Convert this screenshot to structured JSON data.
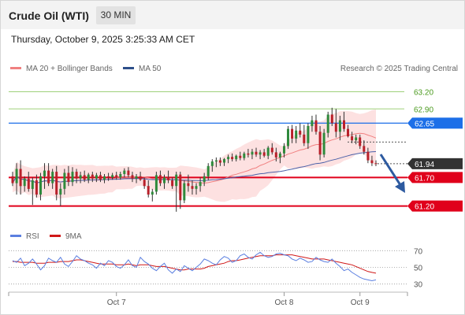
{
  "header": {
    "instrument": "Crude Oil (WTI)",
    "timeframe": "30 MIN"
  },
  "timestamp": "Thursday, October 9, 2025 3:25:33 AM CET",
  "legend": {
    "ma_bollinger": "MA 20 + Bollinger Bands",
    "ma50": "MA 50",
    "rsi": "RSI",
    "nine_ma": "9MA"
  },
  "credit": "Research © 2025 Trading Central",
  "colors": {
    "up": "#2f8a3c",
    "down": "#b8202a",
    "resistance": "#e0001b",
    "pivot": "#1c6fe8",
    "target_line": "#9fd07a",
    "band_fill": "#fde1e1",
    "ma20": "#f08080",
    "ma50": "#4a60a8",
    "rsi": "#5b7fe0",
    "nine_ma": "#d01818",
    "arrow": "#2d5aa0",
    "last_price_tag": "#333333"
  },
  "chart_data": [
    {
      "type": "candlestick",
      "title": "Crude Oil (WTI)",
      "timeframe": "30 MIN",
      "x_ticks": [
        "Oct 7",
        "Oct 8",
        "Oct 9"
      ],
      "ylim": [
        60.85,
        63.4
      ],
      "levels": [
        {
          "value": 63.2,
          "label": "63.20",
          "role": "target",
          "style": "green-line"
        },
        {
          "value": 62.9,
          "label": "62.90",
          "role": "target",
          "style": "green-line"
        },
        {
          "value": 62.65,
          "label": "62.65",
          "role": "pivot",
          "style": "blue-tag"
        },
        {
          "value": 61.94,
          "label": "61.94",
          "role": "last",
          "style": "dark-tag"
        },
        {
          "value": 61.7,
          "label": "61.70",
          "role": "support",
          "style": "red-tag"
        },
        {
          "value": 61.2,
          "label": "61.20",
          "role": "support",
          "style": "red-tag"
        }
      ],
      "series": [
        {
          "name": "MA 20 + Bollinger Bands",
          "type": "line"
        },
        {
          "name": "MA 50",
          "type": "line"
        }
      ],
      "candles": [
        [
          61.72,
          61.8,
          61.55,
          61.6
        ],
        [
          61.6,
          61.95,
          61.4,
          61.85
        ],
        [
          61.85,
          62.0,
          61.4,
          61.55
        ],
        [
          61.55,
          61.72,
          61.45,
          61.68
        ],
        [
          61.68,
          61.8,
          61.45,
          61.5
        ],
        [
          61.5,
          61.7,
          61.22,
          61.65
        ],
        [
          61.65,
          61.75,
          61.35,
          61.4
        ],
        [
          61.4,
          61.78,
          61.3,
          61.72
        ],
        [
          61.72,
          61.95,
          61.5,
          61.82
        ],
        [
          61.82,
          61.95,
          61.55,
          61.6
        ],
        [
          61.6,
          61.85,
          61.5,
          61.8
        ],
        [
          61.8,
          61.9,
          61.3,
          61.4
        ],
        [
          61.4,
          61.6,
          61.2,
          61.5
        ],
        [
          61.5,
          61.85,
          61.4,
          61.78
        ],
        [
          61.78,
          61.9,
          61.55,
          61.62
        ],
        [
          61.62,
          61.88,
          61.55,
          61.8
        ],
        [
          61.8,
          61.85,
          61.6,
          61.68
        ],
        [
          61.68,
          61.8,
          61.6,
          61.74
        ],
        [
          61.74,
          61.82,
          61.62,
          61.66
        ],
        [
          61.66,
          61.78,
          61.6,
          61.75
        ],
        [
          61.75,
          61.8,
          61.62,
          61.68
        ],
        [
          61.68,
          61.78,
          61.62,
          61.74
        ],
        [
          61.74,
          61.8,
          61.62,
          61.66
        ],
        [
          61.66,
          61.76,
          61.6,
          61.72
        ],
        [
          61.72,
          61.78,
          61.64,
          61.7
        ],
        [
          61.7,
          61.78,
          61.66,
          61.74
        ],
        [
          61.74,
          61.8,
          61.66,
          61.7
        ],
        [
          61.7,
          61.8,
          61.66,
          61.76
        ],
        [
          61.76,
          61.86,
          61.7,
          61.82
        ],
        [
          61.82,
          61.88,
          61.7,
          61.74
        ],
        [
          61.74,
          61.8,
          61.62,
          61.68
        ],
        [
          61.68,
          61.76,
          61.6,
          61.72
        ],
        [
          61.72,
          61.8,
          61.64,
          61.66
        ],
        [
          61.66,
          61.7,
          61.5,
          61.55
        ],
        [
          61.55,
          61.65,
          61.35,
          61.4
        ],
        [
          61.4,
          61.5,
          61.28,
          61.45
        ],
        [
          61.45,
          61.8,
          61.4,
          61.74
        ],
        [
          61.74,
          61.82,
          61.55,
          61.6
        ],
        [
          61.6,
          61.75,
          61.5,
          61.7
        ],
        [
          61.7,
          61.82,
          61.6,
          61.65
        ],
        [
          61.65,
          61.7,
          61.5,
          61.55
        ],
        [
          61.55,
          61.8,
          61.1,
          61.75
        ],
        [
          61.75,
          61.8,
          61.15,
          61.3
        ],
        [
          61.3,
          61.65,
          61.25,
          61.6
        ],
        [
          61.6,
          61.75,
          61.45,
          61.55
        ],
        [
          61.55,
          61.65,
          61.4,
          61.5
        ],
        [
          61.5,
          61.6,
          61.4,
          61.55
        ],
        [
          61.55,
          61.7,
          61.45,
          61.62
        ],
        [
          61.62,
          61.78,
          61.55,
          61.72
        ],
        [
          61.72,
          61.95,
          61.65,
          61.9
        ],
        [
          61.9,
          62.02,
          61.8,
          61.98
        ],
        [
          61.98,
          62.05,
          61.88,
          62.0
        ],
        [
          62.0,
          62.05,
          61.9,
          61.96
        ],
        [
          61.96,
          62.04,
          61.9,
          62.02
        ],
        [
          62.02,
          62.1,
          61.95,
          62.06
        ],
        [
          62.06,
          62.12,
          61.98,
          62.02
        ],
        [
          62.02,
          62.1,
          61.98,
          62.08
        ],
        [
          62.08,
          62.15,
          62.0,
          62.04
        ],
        [
          62.04,
          62.15,
          62.0,
          62.12
        ],
        [
          62.12,
          62.2,
          62.05,
          62.1
        ],
        [
          62.1,
          62.2,
          62.02,
          62.15
        ],
        [
          62.15,
          62.22,
          62.06,
          62.1
        ],
        [
          62.1,
          62.18,
          62.02,
          62.14
        ],
        [
          62.14,
          62.2,
          62.05,
          62.08
        ],
        [
          62.08,
          62.25,
          62.02,
          62.22
        ],
        [
          62.22,
          62.3,
          62.1,
          62.14
        ],
        [
          62.14,
          62.22,
          61.98,
          62.05
        ],
        [
          62.05,
          62.15,
          61.95,
          62.12
        ],
        [
          62.12,
          62.3,
          62.05,
          62.25
        ],
        [
          62.25,
          62.6,
          62.2,
          62.55
        ],
        [
          62.55,
          62.62,
          62.3,
          62.38
        ],
        [
          62.38,
          62.6,
          62.3,
          62.52
        ],
        [
          62.52,
          62.65,
          62.4,
          62.45
        ],
        [
          62.45,
          62.62,
          62.25,
          62.3
        ],
        [
          62.3,
          62.65,
          62.2,
          62.6
        ],
        [
          62.6,
          62.78,
          62.5,
          62.7
        ],
        [
          62.7,
          62.8,
          62.45,
          62.5
        ],
        [
          62.5,
          62.6,
          62.0,
          62.1
        ],
        [
          62.1,
          62.55,
          62.05,
          62.48
        ],
        [
          62.48,
          62.85,
          62.4,
          62.8
        ],
        [
          62.8,
          62.92,
          62.6,
          62.65
        ],
        [
          62.65,
          62.9,
          62.4,
          62.5
        ],
        [
          62.5,
          62.78,
          62.35,
          62.7
        ],
        [
          62.7,
          62.85,
          62.5,
          62.55
        ],
        [
          62.55,
          62.62,
          62.4,
          62.42
        ],
        [
          62.42,
          62.5,
          62.3,
          62.35
        ],
        [
          62.35,
          62.45,
          62.28,
          62.4
        ],
        [
          62.4,
          62.45,
          62.2,
          62.25
        ],
        [
          62.25,
          62.35,
          62.1,
          62.15
        ],
        [
          62.15,
          62.22,
          61.95,
          62.0
        ],
        [
          62.0,
          62.08,
          61.9,
          61.95
        ],
        [
          61.95,
          62.0,
          61.9,
          61.94
        ]
      ]
    },
    {
      "type": "line",
      "title": "RSI",
      "series": [
        {
          "name": "RSI"
        },
        {
          "name": "9MA"
        }
      ],
      "ylim": [
        25,
        75
      ],
      "y_ticks": [
        70,
        50,
        30
      ],
      "rsi": [
        58,
        56,
        61,
        52,
        55,
        60,
        54,
        47,
        52,
        61,
        58,
        56,
        62,
        54,
        51,
        57,
        64,
        60,
        58,
        55,
        53,
        49,
        55,
        52,
        58,
        56,
        51,
        49,
        53,
        59,
        52,
        50,
        62,
        57,
        54,
        49,
        46,
        51,
        55,
        47,
        43,
        48,
        45,
        52,
        49,
        46,
        50,
        54,
        60,
        58,
        55,
        53,
        59,
        63,
        61,
        56,
        58,
        64,
        66,
        62,
        60,
        65,
        68,
        64,
        62,
        63,
        66,
        67,
        65,
        64,
        60,
        58,
        61,
        59,
        56,
        57,
        62,
        59,
        57,
        56,
        60,
        55,
        51,
        46,
        48,
        44,
        41,
        38,
        36,
        35,
        34,
        35
      ],
      "nine_ma": [
        57,
        57,
        56,
        56,
        56,
        56,
        55,
        55,
        55,
        56,
        56,
        56,
        57,
        57,
        57,
        58,
        59,
        59,
        58,
        57,
        56,
        55,
        54,
        54,
        54,
        54,
        53,
        53,
        53,
        54,
        53,
        52,
        53,
        53,
        53,
        52,
        51,
        51,
        51,
        50,
        49,
        48,
        47,
        47,
        48,
        48,
        48,
        48,
        49,
        51,
        52,
        53,
        54,
        55,
        57,
        58,
        58,
        59,
        60,
        61,
        62,
        63,
        64,
        64,
        64,
        64,
        65,
        65,
        65,
        65,
        65,
        64,
        63,
        62,
        61,
        60,
        60,
        60,
        60,
        59,
        58,
        57,
        56,
        55,
        54,
        53,
        51,
        49,
        47,
        45,
        44,
        43
      ]
    }
  ]
}
